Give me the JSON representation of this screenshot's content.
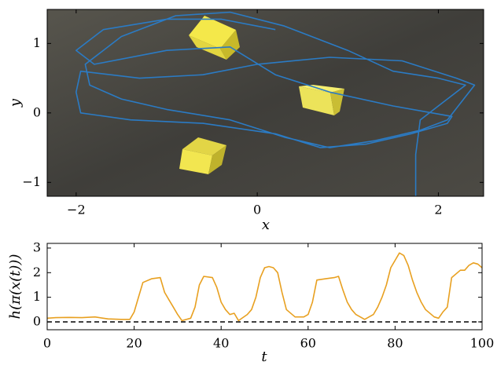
{
  "chart_data": [
    {
      "type": "line",
      "xlabel": "x",
      "ylabel": "y",
      "x": [
        1.75,
        1.75,
        1.8,
        2.1,
        2.3,
        2.0,
        1.5,
        1.0,
        0.3,
        -0.3,
        -0.9,
        -1.5,
        -1.9,
        -1.85,
        -1.5,
        -1.0,
        -0.3,
        0.3,
        0.8,
        1.3,
        1.8,
        2.1,
        2.4,
        2.2,
        1.6,
        0.8,
        0.0,
        -0.6,
        -1.3,
        -1.95,
        -2.0,
        -1.95,
        -1.4,
        -0.6,
        0.2,
        0.7,
        1.2,
        1.7,
        2.1,
        2.15,
        1.5,
        0.8,
        0.2,
        -0.3,
        -1.0,
        -1.8,
        -2.0,
        -1.7,
        -1.0,
        -0.4,
        0.2
      ],
      "series": [
        {
          "color": "#2b7bc4",
          "values": [
            -1.2,
            -0.6,
            -0.1,
            0.2,
            0.4,
            0.5,
            0.6,
            0.9,
            1.25,
            1.45,
            1.4,
            1.1,
            0.7,
            0.4,
            0.2,
            0.05,
            -0.1,
            -0.35,
            -0.5,
            -0.4,
            -0.25,
            -0.1,
            0.4,
            0.5,
            0.75,
            0.8,
            0.7,
            0.55,
            0.5,
            0.6,
            0.3,
            0.0,
            -0.1,
            -0.15,
            -0.3,
            -0.5,
            -0.45,
            -0.3,
            -0.15,
            -0.05,
            0.1,
            0.3,
            0.55,
            0.95,
            0.9,
            0.7,
            0.9,
            1.2,
            1.35,
            1.35,
            1.2
          ]
        }
      ],
      "xlim": [
        -2.32,
        2.5
      ],
      "ylim": [
        -1.2,
        1.49
      ],
      "xticks": [
        {
          "value": -2,
          "label": "−2"
        },
        0,
        2
      ],
      "yticks": [
        {
          "value": -1,
          "label": "−1"
        },
        0,
        1
      ]
    },
    {
      "type": "line",
      "xlabel": "t",
      "ylabel": "h(π(x(t)))",
      "x": [
        0,
        2,
        5,
        8,
        11,
        14,
        17,
        19,
        20,
        21,
        22,
        24,
        26,
        27,
        28,
        29,
        30,
        31,
        33,
        34,
        35,
        36,
        38,
        39,
        40,
        41,
        42,
        43,
        44,
        46,
        47,
        48,
        49,
        50,
        51,
        52,
        53,
        54,
        55,
        57,
        59,
        60,
        61,
        62,
        64,
        66,
        67,
        68,
        69,
        70,
        71,
        73,
        75,
        76,
        77,
        78,
        79,
        80,
        81,
        82,
        83,
        84,
        85,
        86,
        87,
        89,
        90,
        91,
        92,
        93,
        95,
        96,
        97,
        98,
        99,
        100
      ],
      "series": [
        {
          "color": "#e8a020",
          "values": [
            0.15,
            0.17,
            0.18,
            0.17,
            0.2,
            0.12,
            0.1,
            0.1,
            0.4,
            1.0,
            1.6,
            1.75,
            1.8,
            1.2,
            0.9,
            0.6,
            0.3,
            0.05,
            0.15,
            0.6,
            1.5,
            1.85,
            1.8,
            1.4,
            0.8,
            0.5,
            0.3,
            0.35,
            0.05,
            0.3,
            0.5,
            1.0,
            1.8,
            2.2,
            2.25,
            2.2,
            2.0,
            1.2,
            0.5,
            0.2,
            0.2,
            0.3,
            0.8,
            1.7,
            1.75,
            1.8,
            1.85,
            1.3,
            0.8,
            0.5,
            0.3,
            0.1,
            0.3,
            0.6,
            1.0,
            1.5,
            2.2,
            2.5,
            2.8,
            2.7,
            2.3,
            1.7,
            1.2,
            0.8,
            0.5,
            0.2,
            0.15,
            0.4,
            0.6,
            1.8,
            2.1,
            2.1,
            2.3,
            2.4,
            2.35,
            2.2
          ]
        }
      ],
      "reference_line": 0,
      "xlim": [
        0,
        100
      ],
      "ylim": [
        -0.32,
        3.19
      ],
      "xticks": [
        0,
        20,
        40,
        60,
        80,
        100
      ],
      "yticks": [
        0,
        1,
        2,
        3
      ]
    }
  ]
}
